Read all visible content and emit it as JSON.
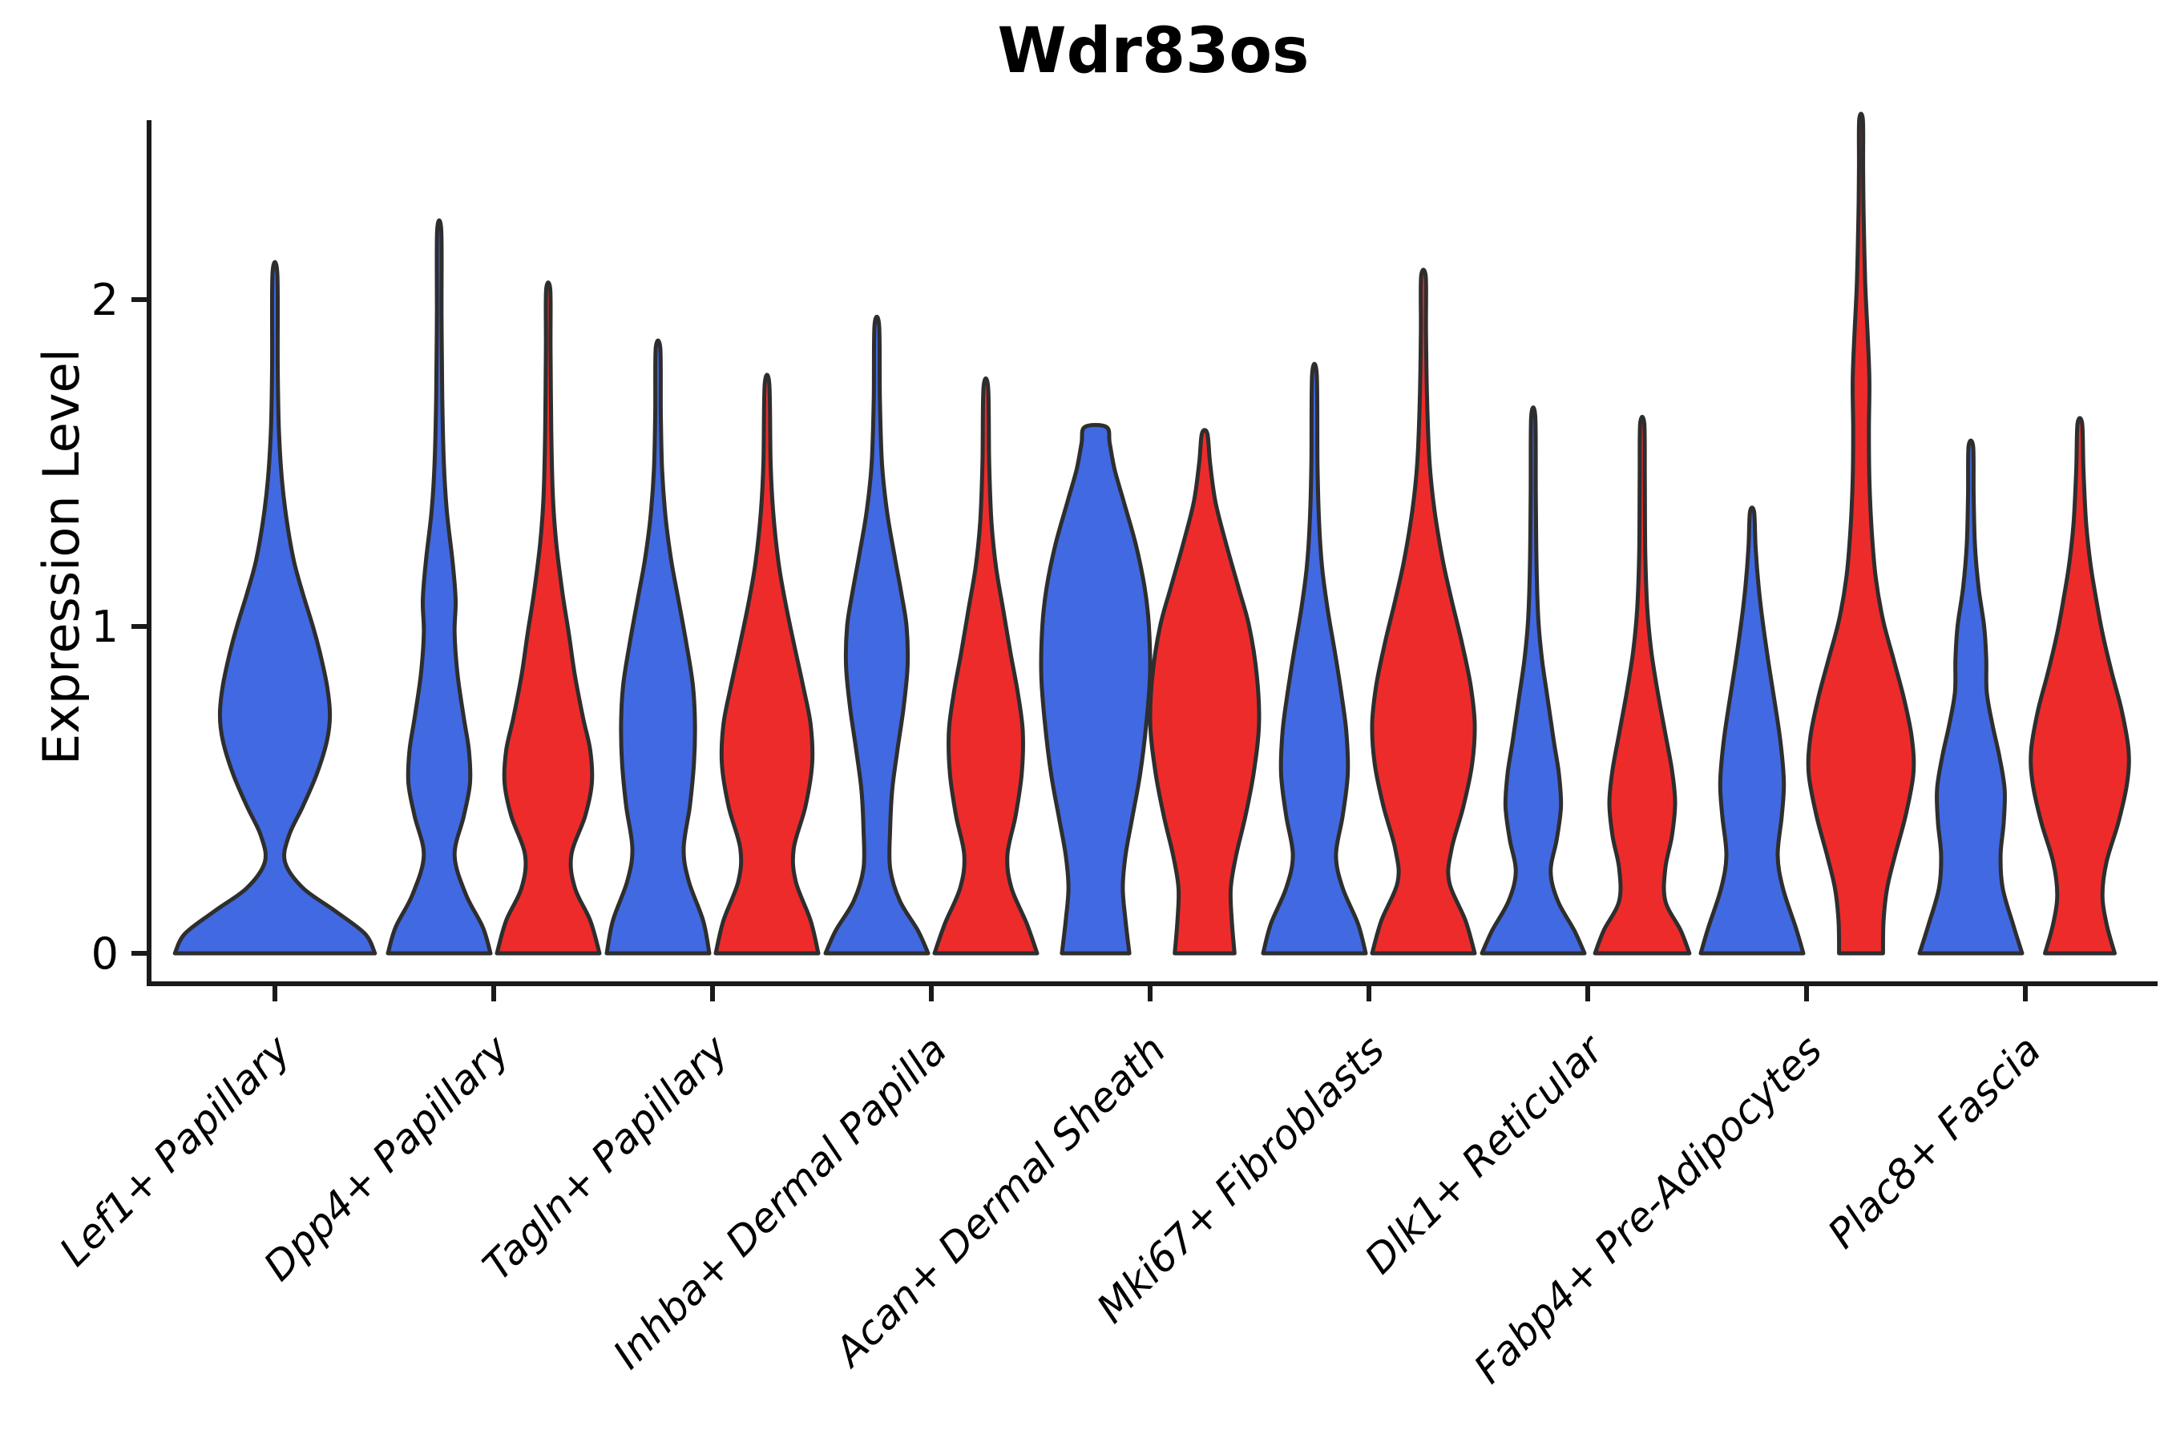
{
  "title": "Wdr83os",
  "axes": {
    "ylabel": "Expression Level",
    "yticks": [
      "0",
      "1",
      "2"
    ],
    "x_tick_rotation": 45
  },
  "colors": {
    "blue": "#4169E1",
    "red": "#EE2B2B",
    "violin_outline": "#2e2e2e",
    "axis": "#1a1a1a",
    "text": "#000000"
  },
  "chart_data": {
    "type": "violin",
    "title": "Wdr83os",
    "xlabel": "",
    "ylabel": "Expression Level",
    "ylim": [
      0,
      2.6
    ],
    "yticks": [
      0,
      1,
      2
    ],
    "grid": false,
    "legend": "none",
    "categories": [
      "Lef1+ Papillary",
      "Dpp4+ Papillary",
      "Tagln+ Papillary",
      "Inhba+ Dermal Papilla",
      "Acan+ Dermal Sheath",
      "Mki67+ Fibroblasts",
      "Dlk1+ Reticular",
      "Fabp4+ Pre-Adipocytes",
      "Plac8+ Fascia"
    ],
    "violins": [
      {
        "category": "Lef1+ Papillary",
        "color": "blue",
        "pos": "center",
        "wscale": 1.95,
        "max": 2.08,
        "profile": [
          [
            0,
            1.0
          ],
          [
            0.06,
            0.9
          ],
          [
            0.13,
            0.6
          ],
          [
            0.2,
            0.28
          ],
          [
            0.28,
            0.1
          ],
          [
            0.36,
            0.14
          ],
          [
            0.45,
            0.28
          ],
          [
            0.55,
            0.42
          ],
          [
            0.65,
            0.52
          ],
          [
            0.73,
            0.55
          ],
          [
            0.82,
            0.52
          ],
          [
            0.92,
            0.45
          ],
          [
            1.0,
            0.38
          ],
          [
            1.1,
            0.28
          ],
          [
            1.2,
            0.19
          ],
          [
            1.32,
            0.12
          ],
          [
            1.45,
            0.07
          ],
          [
            1.6,
            0.04
          ],
          [
            1.8,
            0.028
          ],
          [
            2.08,
            0.024
          ]
        ]
      },
      {
        "category": "Dpp4+ Papillary",
        "color": "blue",
        "pos": "left",
        "wscale": 1.0,
        "max": 2.21,
        "profile": [
          [
            0,
            1.0
          ],
          [
            0.08,
            0.85
          ],
          [
            0.18,
            0.52
          ],
          [
            0.3,
            0.3
          ],
          [
            0.42,
            0.48
          ],
          [
            0.52,
            0.6
          ],
          [
            0.62,
            0.58
          ],
          [
            0.72,
            0.48
          ],
          [
            0.85,
            0.36
          ],
          [
            0.98,
            0.3
          ],
          [
            1.08,
            0.32
          ],
          [
            1.2,
            0.26
          ],
          [
            1.35,
            0.15
          ],
          [
            1.5,
            0.09
          ],
          [
            1.7,
            0.06
          ],
          [
            1.95,
            0.045
          ],
          [
            2.21,
            0.04
          ]
        ]
      },
      {
        "category": "Dpp4+ Papillary",
        "color": "red",
        "pos": "right",
        "wscale": 1.0,
        "max": 2.03,
        "profile": [
          [
            0,
            1.0
          ],
          [
            0.1,
            0.82
          ],
          [
            0.2,
            0.52
          ],
          [
            0.3,
            0.45
          ],
          [
            0.42,
            0.72
          ],
          [
            0.52,
            0.85
          ],
          [
            0.62,
            0.82
          ],
          [
            0.72,
            0.68
          ],
          [
            0.85,
            0.52
          ],
          [
            0.98,
            0.4
          ],
          [
            1.1,
            0.28
          ],
          [
            1.25,
            0.16
          ],
          [
            1.4,
            0.09
          ],
          [
            1.6,
            0.06
          ],
          [
            1.85,
            0.045
          ],
          [
            2.03,
            0.04
          ]
        ]
      },
      {
        "category": "Tagln+ Papillary",
        "color": "blue",
        "pos": "left",
        "wscale": 1.0,
        "max": 1.85,
        "profile": [
          [
            0,
            1.0
          ],
          [
            0.1,
            0.88
          ],
          [
            0.22,
            0.6
          ],
          [
            0.32,
            0.5
          ],
          [
            0.45,
            0.62
          ],
          [
            0.58,
            0.7
          ],
          [
            0.7,
            0.72
          ],
          [
            0.82,
            0.68
          ],
          [
            0.95,
            0.55
          ],
          [
            1.08,
            0.4
          ],
          [
            1.2,
            0.26
          ],
          [
            1.33,
            0.15
          ],
          [
            1.48,
            0.08
          ],
          [
            1.65,
            0.055
          ],
          [
            1.85,
            0.045
          ]
        ]
      },
      {
        "category": "Tagln+ Papillary",
        "color": "red",
        "pos": "right",
        "wscale": 1.0,
        "max": 1.74,
        "profile": [
          [
            0,
            1.0
          ],
          [
            0.1,
            0.85
          ],
          [
            0.22,
            0.56
          ],
          [
            0.32,
            0.52
          ],
          [
            0.45,
            0.75
          ],
          [
            0.58,
            0.88
          ],
          [
            0.7,
            0.85
          ],
          [
            0.82,
            0.7
          ],
          [
            0.95,
            0.52
          ],
          [
            1.08,
            0.35
          ],
          [
            1.2,
            0.22
          ],
          [
            1.35,
            0.12
          ],
          [
            1.5,
            0.07
          ],
          [
            1.74,
            0.045
          ]
        ]
      },
      {
        "category": "Inhba+ Dermal Papilla",
        "color": "blue",
        "pos": "left",
        "wscale": 1.0,
        "max": 1.92,
        "profile": [
          [
            0,
            1.0
          ],
          [
            0.07,
            0.8
          ],
          [
            0.16,
            0.45
          ],
          [
            0.26,
            0.26
          ],
          [
            0.38,
            0.26
          ],
          [
            0.5,
            0.3
          ],
          [
            0.62,
            0.4
          ],
          [
            0.75,
            0.52
          ],
          [
            0.88,
            0.6
          ],
          [
            1.0,
            0.58
          ],
          [
            1.1,
            0.48
          ],
          [
            1.22,
            0.34
          ],
          [
            1.35,
            0.2
          ],
          [
            1.5,
            0.1
          ],
          [
            1.7,
            0.06
          ],
          [
            1.92,
            0.045
          ]
        ]
      },
      {
        "category": "Inhba+ Dermal Papilla",
        "color": "red",
        "pos": "right",
        "wscale": 1.0,
        "max": 1.73,
        "profile": [
          [
            0,
            1.0
          ],
          [
            0.09,
            0.8
          ],
          [
            0.2,
            0.5
          ],
          [
            0.3,
            0.42
          ],
          [
            0.42,
            0.58
          ],
          [
            0.55,
            0.7
          ],
          [
            0.68,
            0.72
          ],
          [
            0.8,
            0.62
          ],
          [
            0.92,
            0.48
          ],
          [
            1.05,
            0.34
          ],
          [
            1.18,
            0.2
          ],
          [
            1.32,
            0.11
          ],
          [
            1.5,
            0.065
          ],
          [
            1.73,
            0.045
          ]
        ]
      },
      {
        "category": "Acan+ Dermal Sheath",
        "color": "blue",
        "pos": "left",
        "wscale": 1.06,
        "max": 1.61,
        "profile": [
          [
            0,
            0.62
          ],
          [
            0.1,
            0.55
          ],
          [
            0.2,
            0.5
          ],
          [
            0.3,
            0.55
          ],
          [
            0.42,
            0.68
          ],
          [
            0.55,
            0.82
          ],
          [
            0.7,
            0.93
          ],
          [
            0.85,
            1.0
          ],
          [
            1.0,
            0.98
          ],
          [
            1.12,
            0.9
          ],
          [
            1.25,
            0.74
          ],
          [
            1.38,
            0.52
          ],
          [
            1.48,
            0.35
          ],
          [
            1.56,
            0.26
          ],
          [
            1.61,
            0.2
          ]
        ]
      },
      {
        "category": "Acan+ Dermal Sheath",
        "color": "red",
        "pos": "right",
        "wscale": 1.06,
        "max": 1.59,
        "profile": [
          [
            0,
            0.55
          ],
          [
            0.1,
            0.5
          ],
          [
            0.2,
            0.48
          ],
          [
            0.3,
            0.58
          ],
          [
            0.42,
            0.75
          ],
          [
            0.55,
            0.9
          ],
          [
            0.7,
            1.0
          ],
          [
            0.85,
            0.96
          ],
          [
            1.0,
            0.82
          ],
          [
            1.12,
            0.62
          ],
          [
            1.25,
            0.4
          ],
          [
            1.38,
            0.2
          ],
          [
            1.5,
            0.1
          ],
          [
            1.59,
            0.05
          ]
        ]
      },
      {
        "category": "Mki67+ Fibroblasts",
        "color": "blue",
        "pos": "left",
        "wscale": 1.0,
        "max": 1.77,
        "profile": [
          [
            0,
            1.0
          ],
          [
            0.09,
            0.85
          ],
          [
            0.2,
            0.55
          ],
          [
            0.3,
            0.42
          ],
          [
            0.42,
            0.55
          ],
          [
            0.55,
            0.65
          ],
          [
            0.68,
            0.62
          ],
          [
            0.8,
            0.52
          ],
          [
            0.92,
            0.4
          ],
          [
            1.05,
            0.26
          ],
          [
            1.18,
            0.15
          ],
          [
            1.32,
            0.09
          ],
          [
            1.5,
            0.06
          ],
          [
            1.77,
            0.045
          ]
        ]
      },
      {
        "category": "Mki67+ Fibroblasts",
        "color": "red",
        "pos": "right",
        "wscale": 1.0,
        "max": 2.07,
        "profile": [
          [
            0,
            1.0
          ],
          [
            0.1,
            0.82
          ],
          [
            0.22,
            0.5
          ],
          [
            0.32,
            0.55
          ],
          [
            0.45,
            0.78
          ],
          [
            0.58,
            0.95
          ],
          [
            0.7,
            1.0
          ],
          [
            0.82,
            0.92
          ],
          [
            0.95,
            0.75
          ],
          [
            1.08,
            0.55
          ],
          [
            1.2,
            0.38
          ],
          [
            1.35,
            0.22
          ],
          [
            1.5,
            0.12
          ],
          [
            1.7,
            0.07
          ],
          [
            1.9,
            0.05
          ],
          [
            2.07,
            0.045
          ]
        ]
      },
      {
        "category": "Dlk1+ Reticular",
        "color": "blue",
        "pos": "left",
        "wscale": 1.0,
        "max": 1.64,
        "profile": [
          [
            0,
            1.0
          ],
          [
            0.07,
            0.8
          ],
          [
            0.16,
            0.48
          ],
          [
            0.25,
            0.34
          ],
          [
            0.35,
            0.46
          ],
          [
            0.45,
            0.54
          ],
          [
            0.55,
            0.5
          ],
          [
            0.65,
            0.4
          ],
          [
            0.78,
            0.28
          ],
          [
            0.9,
            0.17
          ],
          [
            1.02,
            0.1
          ],
          [
            1.18,
            0.065
          ],
          [
            1.4,
            0.05
          ],
          [
            1.64,
            0.04
          ]
        ]
      },
      {
        "category": "Dlk1+ Reticular",
        "color": "red",
        "pos": "right",
        "wscale": 1.0,
        "max": 1.62,
        "profile": [
          [
            0,
            0.92
          ],
          [
            0.07,
            0.75
          ],
          [
            0.16,
            0.45
          ],
          [
            0.26,
            0.45
          ],
          [
            0.36,
            0.58
          ],
          [
            0.46,
            0.64
          ],
          [
            0.56,
            0.58
          ],
          [
            0.68,
            0.44
          ],
          [
            0.8,
            0.3
          ],
          [
            0.92,
            0.18
          ],
          [
            1.05,
            0.1
          ],
          [
            1.22,
            0.06
          ],
          [
            1.45,
            0.05
          ],
          [
            1.62,
            0.04
          ]
        ]
      },
      {
        "category": "Fabp4+ Pre-Adipocytes",
        "color": "blue",
        "pos": "left",
        "wscale": 1.0,
        "max": 1.35,
        "profile": [
          [
            0,
            1.0
          ],
          [
            0.08,
            0.85
          ],
          [
            0.2,
            0.6
          ],
          [
            0.3,
            0.5
          ],
          [
            0.42,
            0.58
          ],
          [
            0.52,
            0.62
          ],
          [
            0.64,
            0.56
          ],
          [
            0.76,
            0.45
          ],
          [
            0.88,
            0.33
          ],
          [
            1.0,
            0.22
          ],
          [
            1.12,
            0.13
          ],
          [
            1.24,
            0.07
          ],
          [
            1.35,
            0.04
          ]
        ]
      },
      {
        "category": "Fabp4+ Pre-Adipocytes",
        "color": "red",
        "pos": "right",
        "wscale": 1.02,
        "max": 2.55,
        "profile": [
          [
            0,
            0.42
          ],
          [
            0.1,
            0.43
          ],
          [
            0.2,
            0.5
          ],
          [
            0.3,
            0.65
          ],
          [
            0.42,
            0.85
          ],
          [
            0.55,
            1.0
          ],
          [
            0.66,
            0.97
          ],
          [
            0.78,
            0.82
          ],
          [
            0.9,
            0.62
          ],
          [
            1.02,
            0.42
          ],
          [
            1.15,
            0.28
          ],
          [
            1.3,
            0.2
          ],
          [
            1.45,
            0.16
          ],
          [
            1.6,
            0.15
          ],
          [
            1.75,
            0.16
          ],
          [
            1.88,
            0.13
          ],
          [
            2.05,
            0.08
          ],
          [
            2.25,
            0.05
          ],
          [
            2.4,
            0.04
          ],
          [
            2.55,
            0.035
          ]
        ]
      },
      {
        "category": "Plac8+ Fascia",
        "color": "blue",
        "pos": "left",
        "wscale": 1.0,
        "max": 1.55,
        "profile": [
          [
            0,
            1.0
          ],
          [
            0.09,
            0.82
          ],
          [
            0.2,
            0.62
          ],
          [
            0.3,
            0.58
          ],
          [
            0.4,
            0.64
          ],
          [
            0.5,
            0.66
          ],
          [
            0.6,
            0.56
          ],
          [
            0.7,
            0.42
          ],
          [
            0.8,
            0.31
          ],
          [
            0.9,
            0.3
          ],
          [
            1.0,
            0.26
          ],
          [
            1.12,
            0.15
          ],
          [
            1.25,
            0.08
          ],
          [
            1.4,
            0.055
          ],
          [
            1.55,
            0.045
          ]
        ]
      },
      {
        "category": "Plac8+ Fascia",
        "color": "red",
        "pos": "right",
        "wscale": 1.0,
        "max": 1.62,
        "profile": [
          [
            0,
            0.68
          ],
          [
            0.09,
            0.52
          ],
          [
            0.18,
            0.44
          ],
          [
            0.28,
            0.52
          ],
          [
            0.4,
            0.75
          ],
          [
            0.52,
            0.92
          ],
          [
            0.62,
            0.95
          ],
          [
            0.74,
            0.82
          ],
          [
            0.86,
            0.62
          ],
          [
            0.98,
            0.44
          ],
          [
            1.1,
            0.3
          ],
          [
            1.2,
            0.2
          ],
          [
            1.32,
            0.12
          ],
          [
            1.48,
            0.07
          ],
          [
            1.62,
            0.045
          ]
        ]
      }
    ]
  }
}
